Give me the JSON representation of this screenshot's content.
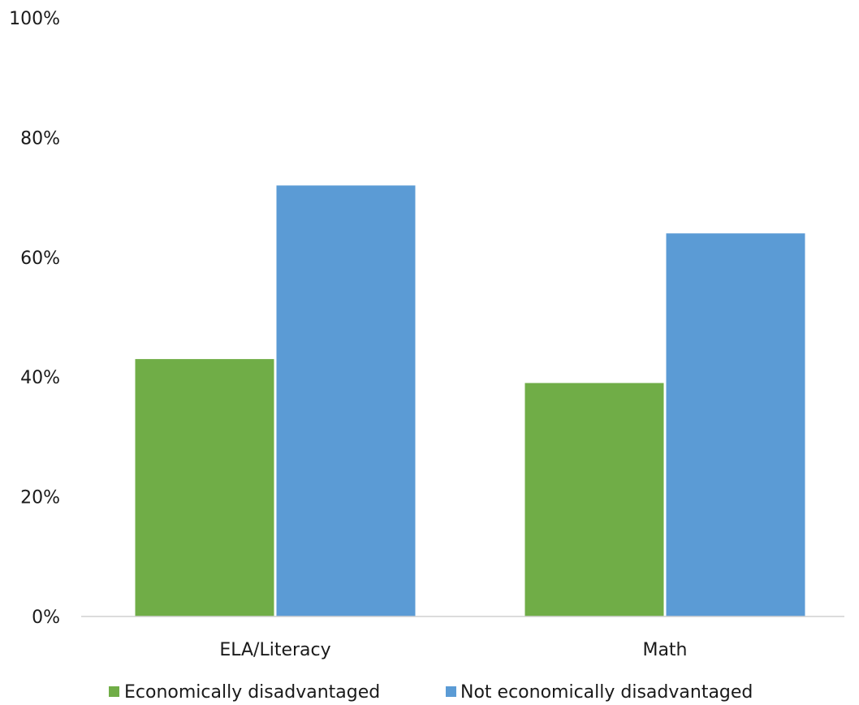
{
  "chart_data": {
    "type": "bar",
    "title": "",
    "xlabel": "",
    "ylabel": "",
    "categories": [
      "ELA/Literacy",
      "Math"
    ],
    "series": [
      {
        "name": "Economically disadvantaged",
        "color": "#70AD47",
        "values": [
          43,
          39
        ]
      },
      {
        "name": "Not economically disadvantaged",
        "color": "#5B9BD5",
        "values": [
          72,
          64
        ]
      }
    ],
    "ylim": [
      0,
      100
    ],
    "yticks": [
      0,
      20,
      40,
      60,
      80,
      100
    ],
    "ytick_labels": [
      "0%",
      "20%",
      "40%",
      "60%",
      "80%",
      "100%"
    ],
    "grid": false,
    "legend_position": "bottom"
  }
}
